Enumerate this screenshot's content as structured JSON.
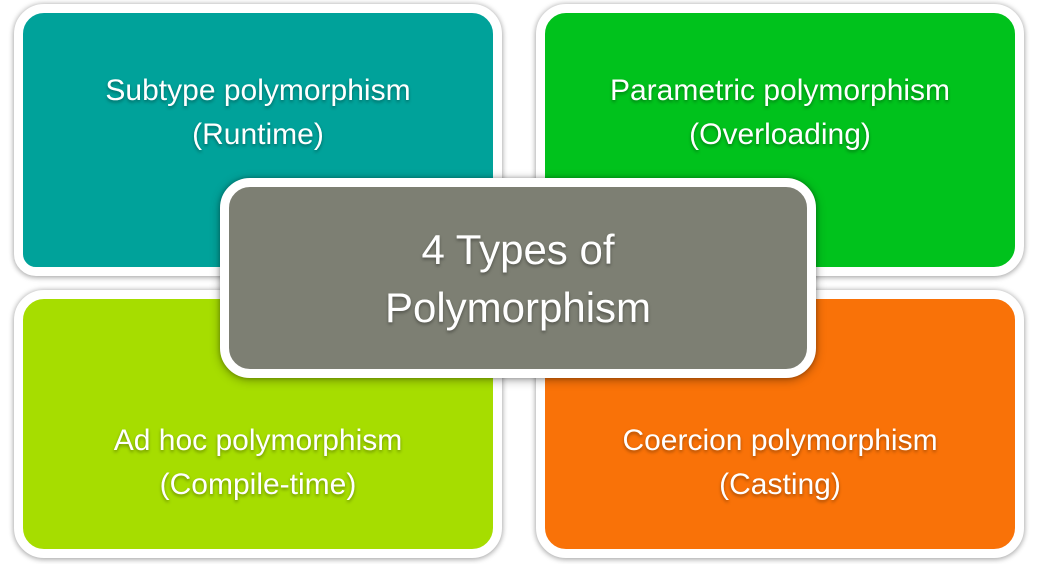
{
  "colors": {
    "subtype": "#00a29a",
    "parametric": "#00c21c",
    "adhoc": "#a6dd00",
    "coercion": "#f97208",
    "center": "#7d7f73"
  },
  "center": {
    "line1": "4 Types of",
    "line2": "Polymorphism"
  },
  "quadrants": {
    "subtype": {
      "title": "Subtype polymorphism",
      "subtitle": "(Runtime)"
    },
    "parametric": {
      "title": "Parametric polymorphism",
      "subtitle": "(Overloading)"
    },
    "adhoc": {
      "title": "Ad hoc polymorphism",
      "subtitle": "(Compile-time)"
    },
    "coercion": {
      "title": "Coercion polymorphism",
      "subtitle": "(Casting)"
    }
  }
}
